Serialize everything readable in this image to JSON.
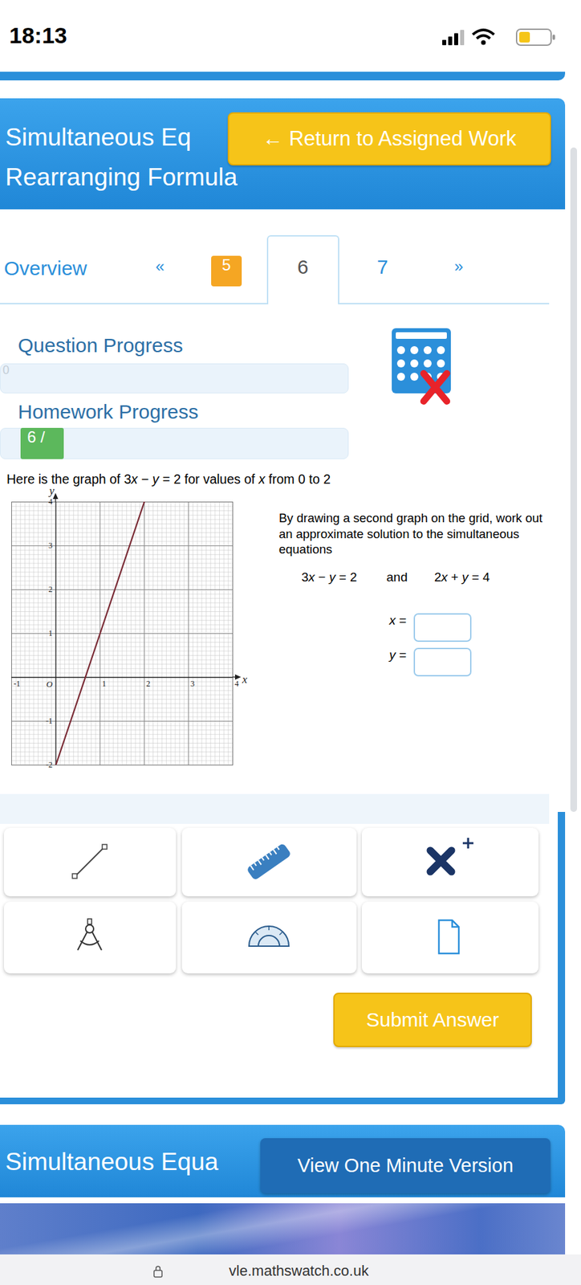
{
  "status_bar": {
    "time": "18:13"
  },
  "header": {
    "title": "Simultaneous Eq",
    "subtitle": "Rearranging Formula",
    "return_button": "← Return to Assigned Work"
  },
  "tabs": {
    "overview": "Overview",
    "previous": "«",
    "pages": [
      "5",
      "6",
      "7"
    ],
    "current": "6",
    "next": "»"
  },
  "progress": {
    "question_label": "Question Progress",
    "question_value": "0",
    "homework_label": "Homework Progress",
    "homework_value": "6 /"
  },
  "question": {
    "intro": "Here is the graph of 3x − y = 2 for values of x from 0 to 2",
    "instruction": "By drawing a second graph on the grid, work out an approximate solution to the simultaneous equations",
    "equation_1": "3x − y = 2",
    "joiner": "and",
    "equation_2": "2x + y = 4",
    "answer_labels": [
      "x =",
      "y ="
    ]
  },
  "chart_data": {
    "type": "line",
    "x": [
      0,
      2
    ],
    "values": [
      -2,
      4
    ],
    "color": "#7a2b35",
    "xlim": [
      -1,
      4
    ],
    "ylim": [
      -2,
      4
    ],
    "xticks": [
      -1,
      1,
      2,
      3,
      4
    ],
    "yticks": [
      -2,
      -1,
      1,
      2,
      3,
      4
    ],
    "xlabel": "x",
    "ylabel": "y",
    "annotations": [
      {
        "text": "O",
        "x": 0,
        "y": 0
      }
    ],
    "grid": true
  },
  "submit_button": "Submit Answer",
  "footer_card": {
    "title": "Simultaneous Equa",
    "button": "View One Minute Version"
  },
  "url": "vle.mathswatch.co.uk"
}
